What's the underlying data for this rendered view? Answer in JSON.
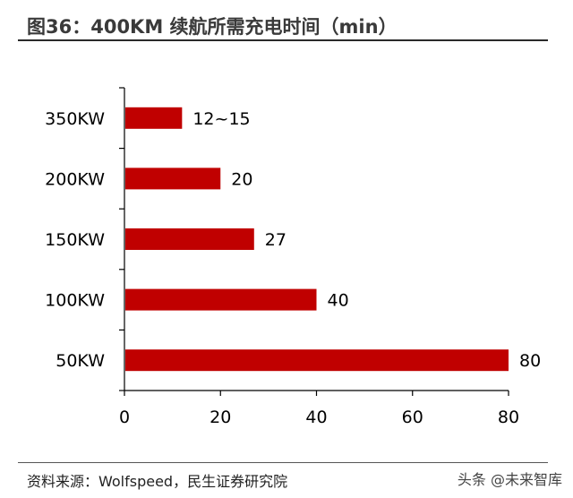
{
  "title": "图36：400KM 续航所需充电时间（min）",
  "source": "资料来源：Wolfspeed，民生证券研究院",
  "watermark": "头条 @未来智库",
  "colors": {
    "bar": "#c00000"
  },
  "chart_data": {
    "type": "bar",
    "orientation": "horizontal",
    "categories": [
      "350KW",
      "200KW",
      "150KW",
      "100KW",
      "50KW"
    ],
    "values": [
      12,
      20,
      27,
      40,
      80
    ],
    "data_labels": [
      "12~15",
      "20",
      "27",
      "40",
      "80"
    ],
    "xlim": [
      0,
      80
    ],
    "xticks": [
      0,
      20,
      40,
      60,
      80
    ],
    "grid": false,
    "legend": "none"
  }
}
